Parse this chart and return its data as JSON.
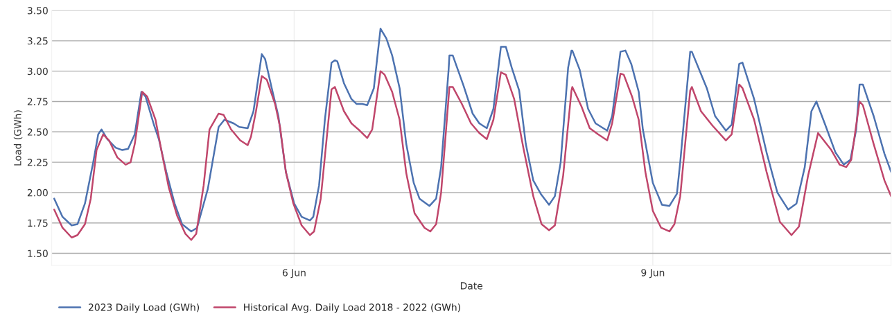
{
  "chart_data": {
    "type": "line",
    "xlabel": "Date",
    "ylabel": "Load (GWh)",
    "xlim": [
      "2023-06-03T23:20",
      "2023-06-10T23:50"
    ],
    "xticks": [
      {
        "value": "2023-06-06",
        "label": "6 Jun"
      },
      {
        "value": "2023-06-09",
        "label": "9 Jun"
      }
    ],
    "ylim": [
      1.4,
      3.5
    ],
    "yticks": [
      {
        "value": 1.5,
        "label": "1.50"
      },
      {
        "value": 1.75,
        "label": "1.75"
      },
      {
        "value": 2.0,
        "label": "2.00"
      },
      {
        "value": 2.25,
        "label": "2.25"
      },
      {
        "value": 2.5,
        "label": "2.50"
      },
      {
        "value": 2.75,
        "label": "2.75"
      },
      {
        "value": 3.0,
        "label": "3.00"
      },
      {
        "value": 3.25,
        "label": "3.25"
      },
      {
        "value": 3.5,
        "label": "3.50"
      }
    ],
    "grid": true,
    "legend": "bottom left",
    "marker": "none",
    "line_style": "solid",
    "series": [
      {
        "name": "2023 Daily Load (GWh)",
        "color": "#4c72b0",
        "x": [
          "2023-06-03T23:50",
          "2023-06-04T01:30",
          "2023-06-04T03:20",
          "2023-06-04T04:30",
          "2023-06-04T06:00",
          "2023-06-04T07:40",
          "2023-06-04T08:40",
          "2023-06-04T09:20",
          "2023-06-04T10:30",
          "2023-06-04T12:10",
          "2023-06-04T13:30",
          "2023-06-04T14:40",
          "2023-06-04T16:00",
          "2023-06-04T17:20",
          "2023-06-04T18:10",
          "2023-06-04T19:50",
          "2023-06-04T20:50",
          "2023-06-04T22:20",
          "2023-06-05T00:00",
          "2023-06-05T01:30",
          "2023-06-05T03:20",
          "2023-06-05T04:30",
          "2023-06-05T06:40",
          "2023-06-05T08:50",
          "2023-06-05T10:00",
          "2023-06-05T11:50",
          "2023-06-05T13:00",
          "2023-06-05T14:40",
          "2023-06-05T15:50",
          "2023-06-05T17:30",
          "2023-06-05T18:10",
          "2023-06-05T19:30",
          "2023-06-05T20:50",
          "2023-06-05T22:20",
          "2023-06-06T00:00",
          "2023-06-06T01:30",
          "2023-06-06T03:10",
          "2023-06-06T03:50",
          "2023-06-06T05:00",
          "2023-06-06T06:10",
          "2023-06-06T07:30",
          "2023-06-06T08:10",
          "2023-06-06T08:40",
          "2023-06-06T10:00",
          "2023-06-06T11:30",
          "2023-06-06T12:30",
          "2023-06-06T13:40",
          "2023-06-06T14:40",
          "2023-06-06T16:00",
          "2023-06-06T17:20",
          "2023-06-06T18:30",
          "2023-06-06T19:40",
          "2023-06-06T21:10",
          "2023-06-06T22:30",
          "2023-06-07T00:00",
          "2023-06-07T01:10",
          "2023-06-07T03:10",
          "2023-06-07T04:30",
          "2023-06-07T05:30",
          "2023-06-07T07:00",
          "2023-06-07T07:10",
          "2023-06-07T07:50",
          "2023-06-07T10:00",
          "2023-06-07T11:50",
          "2023-06-07T13:10",
          "2023-06-07T14:40",
          "2023-06-07T16:00",
          "2023-06-07T17:30",
          "2023-06-07T18:30",
          "2023-06-07T19:40",
          "2023-06-07T21:10",
          "2023-06-07T22:30",
          "2023-06-08T00:00",
          "2023-06-08T01:30",
          "2023-06-08T03:10",
          "2023-06-08T04:20",
          "2023-06-08T05:30",
          "2023-06-08T07:00",
          "2023-06-08T07:40",
          "2023-06-08T07:50",
          "2023-06-08T09:20",
          "2023-06-08T11:00",
          "2023-06-08T12:30",
          "2023-06-08T14:50",
          "2023-06-08T15:50",
          "2023-06-08T17:30",
          "2023-06-08T18:30",
          "2023-06-08T19:40",
          "2023-06-08T21:10",
          "2023-06-08T22:00",
          "2023-06-09T00:00",
          "2023-06-09T01:50",
          "2023-06-09T03:20",
          "2023-06-09T04:50",
          "2023-06-09T05:30",
          "2023-06-09T07:30",
          "2023-06-09T07:50",
          "2023-06-09T10:50",
          "2023-06-09T12:30",
          "2023-06-09T14:40",
          "2023-06-09T15:50",
          "2023-06-09T17:20",
          "2023-06-09T18:00",
          "2023-06-09T20:20",
          "2023-06-09T22:50",
          "2023-06-10T01:00",
          "2023-06-10T03:10",
          "2023-06-10T04:50",
          "2023-06-10T06:30",
          "2023-06-10T07:50",
          "2023-06-10T08:50",
          "2023-06-10T10:30",
          "2023-06-10T12:40",
          "2023-06-10T14:20",
          "2023-06-10T15:40",
          "2023-06-10T16:50",
          "2023-06-10T17:30",
          "2023-06-10T18:10",
          "2023-06-10T20:20",
          "2023-06-10T22:30",
          "2023-06-10T23:50"
        ],
        "values": [
          1.95,
          1.8,
          1.73,
          1.74,
          1.91,
          2.25,
          2.48,
          2.52,
          2.44,
          2.37,
          2.35,
          2.36,
          2.48,
          2.83,
          2.79,
          2.56,
          2.44,
          2.17,
          1.91,
          1.74,
          1.68,
          1.71,
          2.03,
          2.54,
          2.6,
          2.57,
          2.54,
          2.53,
          2.67,
          3.14,
          3.1,
          2.86,
          2.63,
          2.17,
          1.91,
          1.8,
          1.77,
          1.8,
          2.06,
          2.6,
          3.07,
          3.09,
          3.08,
          2.9,
          2.77,
          2.73,
          2.73,
          2.72,
          2.86,
          3.35,
          3.27,
          3.13,
          2.86,
          2.4,
          2.08,
          1.95,
          1.89,
          1.95,
          2.21,
          3.01,
          3.13,
          3.13,
          2.88,
          2.65,
          2.57,
          2.53,
          2.69,
          3.2,
          3.2,
          3.03,
          2.84,
          2.4,
          2.1,
          1.99,
          1.9,
          1.97,
          2.25,
          3.03,
          3.17,
          3.17,
          3.01,
          2.69,
          2.57,
          2.51,
          2.63,
          3.16,
          3.17,
          3.06,
          2.83,
          2.52,
          2.08,
          1.9,
          1.89,
          1.99,
          2.25,
          3.16,
          3.16,
          2.86,
          2.63,
          2.51,
          2.56,
          3.06,
          3.07,
          2.77,
          2.33,
          2.0,
          1.86,
          1.91,
          2.21,
          2.67,
          2.75,
          2.57,
          2.33,
          2.23,
          2.27,
          2.52,
          2.89,
          2.89,
          2.63,
          2.32,
          2.17
        ]
      },
      {
        "name": "Historical Avg. Daily Load 2018 - 2022 (GWh)",
        "color": "#c0466b",
        "x": [
          "2023-06-03T23:50",
          "2023-06-04T01:30",
          "2023-06-04T03:20",
          "2023-06-04T04:30",
          "2023-06-04T06:00",
          "2023-06-04T07:10",
          "2023-06-04T08:20",
          "2023-06-04T09:40",
          "2023-06-04T10:50",
          "2023-06-04T12:30",
          "2023-06-04T14:10",
          "2023-06-04T15:10",
          "2023-06-04T16:00",
          "2023-06-04T17:30",
          "2023-06-04T18:30",
          "2023-06-04T20:10",
          "2023-06-04T21:20",
          "2023-06-04T22:50",
          "2023-06-05T00:30",
          "2023-06-05T02:10",
          "2023-06-05T03:20",
          "2023-06-05T04:20",
          "2023-06-05T05:50",
          "2023-06-05T07:00",
          "2023-06-05T08:50",
          "2023-06-05T09:50",
          "2023-06-05T11:20",
          "2023-06-05T13:10",
          "2023-06-05T14:40",
          "2023-06-05T15:20",
          "2023-06-05T16:20",
          "2023-06-05T17:30",
          "2023-06-05T18:30",
          "2023-06-05T20:10",
          "2023-06-05T21:10",
          "2023-06-05T22:20",
          "2023-06-05T23:50",
          "2023-06-06T01:30",
          "2023-06-06T03:10",
          "2023-06-06T04:00",
          "2023-06-06T05:20",
          "2023-06-06T07:30",
          "2023-06-06T08:10",
          "2023-06-06T10:00",
          "2023-06-06T11:30",
          "2023-06-06T13:10",
          "2023-06-06T14:40",
          "2023-06-06T15:40",
          "2023-06-06T17:20",
          "2023-06-06T18:10",
          "2023-06-06T19:40",
          "2023-06-06T21:10",
          "2023-06-06T22:30",
          "2023-06-07T00:10",
          "2023-06-07T02:10",
          "2023-06-07T03:20",
          "2023-06-07T04:30",
          "2023-06-07T05:30",
          "2023-06-07T07:10",
          "2023-06-07T07:50",
          "2023-06-07T09:40",
          "2023-06-07T11:30",
          "2023-06-07T13:10",
          "2023-06-07T14:40",
          "2023-06-07T16:00",
          "2023-06-07T17:30",
          "2023-06-07T18:30",
          "2023-06-07T20:10",
          "2023-06-07T22:00",
          "2023-06-08T00:00",
          "2023-06-08T01:40",
          "2023-06-08T03:10",
          "2023-06-08T04:20",
          "2023-06-08T06:00",
          "2023-06-08T07:40",
          "2023-06-08T07:50",
          "2023-06-08T09:40",
          "2023-06-08T11:20",
          "2023-06-08T13:00",
          "2023-06-08T14:50",
          "2023-06-08T15:50",
          "2023-06-08T17:30",
          "2023-06-08T18:10",
          "2023-06-08T19:50",
          "2023-06-08T21:10",
          "2023-06-08T22:30",
          "2023-06-09T00:00",
          "2023-06-09T01:40",
          "2023-06-09T03:20",
          "2023-06-09T04:20",
          "2023-06-09T05:30",
          "2023-06-09T07:30",
          "2023-06-09T07:50",
          "2023-06-09T09:40",
          "2023-06-09T12:00",
          "2023-06-09T14:40",
          "2023-06-09T15:50",
          "2023-06-09T17:20",
          "2023-06-09T18:00",
          "2023-06-09T20:20",
          "2023-06-09T22:50",
          "2023-06-10T01:30",
          "2023-06-10T03:50",
          "2023-06-10T05:20",
          "2023-06-10T07:10",
          "2023-06-10T09:10",
          "2023-06-10T11:50",
          "2023-06-10T13:30",
          "2023-06-10T14:50",
          "2023-06-10T15:50",
          "2023-06-10T17:30",
          "2023-06-10T18:10",
          "2023-06-10T20:20",
          "2023-06-10T22:30",
          "2023-06-10T23:50"
        ],
        "values": [
          1.86,
          1.71,
          1.63,
          1.65,
          1.74,
          1.95,
          2.35,
          2.48,
          2.43,
          2.29,
          2.23,
          2.25,
          2.4,
          2.83,
          2.79,
          2.6,
          2.35,
          2.04,
          1.81,
          1.66,
          1.61,
          1.66,
          2.06,
          2.52,
          2.65,
          2.64,
          2.52,
          2.43,
          2.39,
          2.46,
          2.67,
          2.96,
          2.93,
          2.73,
          2.54,
          2.17,
          1.91,
          1.73,
          1.65,
          1.68,
          1.95,
          2.85,
          2.87,
          2.67,
          2.57,
          2.51,
          2.45,
          2.52,
          3.0,
          2.97,
          2.83,
          2.6,
          2.16,
          1.83,
          1.71,
          1.68,
          1.74,
          2.0,
          2.87,
          2.87,
          2.73,
          2.57,
          2.49,
          2.44,
          2.6,
          2.99,
          2.97,
          2.77,
          2.37,
          1.97,
          1.74,
          1.69,
          1.73,
          2.14,
          2.84,
          2.87,
          2.71,
          2.53,
          2.48,
          2.43,
          2.57,
          2.98,
          2.97,
          2.79,
          2.6,
          2.17,
          1.85,
          1.71,
          1.68,
          1.74,
          1.97,
          2.84,
          2.87,
          2.67,
          2.55,
          2.43,
          2.48,
          2.89,
          2.86,
          2.6,
          2.17,
          1.76,
          1.65,
          1.72,
          2.14,
          2.49,
          2.35,
          2.23,
          2.21,
          2.27,
          2.75,
          2.72,
          2.4,
          2.1,
          1.97
        ]
      }
    ]
  }
}
